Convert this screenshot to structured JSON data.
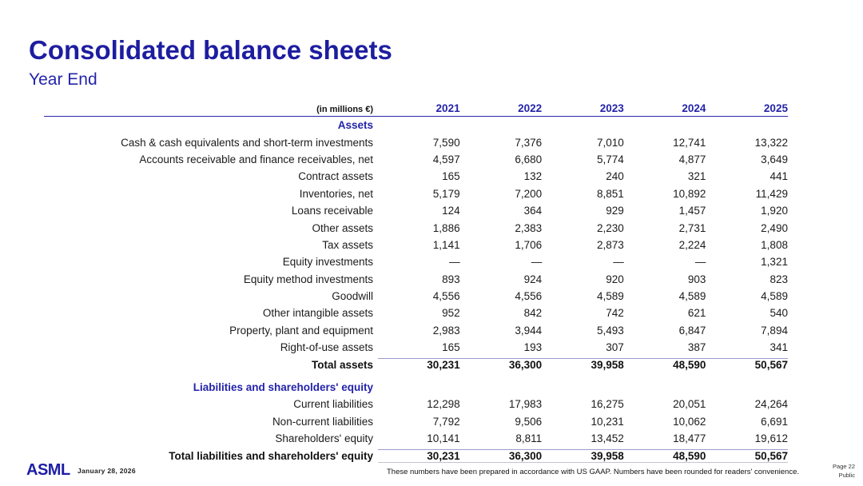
{
  "slide": {
    "title": "Consolidated balance sheets",
    "subtitle": "Year End",
    "unit_label": "(in millions €)",
    "years": [
      "2021",
      "2022",
      "2023",
      "2024",
      "2025"
    ]
  },
  "table": {
    "sections": [
      {
        "header": "Assets",
        "rows": [
          {
            "label": "Cash & cash equivalents and short-term investments",
            "values": [
              "7,590",
              "7,376",
              "7,010",
              "12,741",
              "13,322"
            ]
          },
          {
            "label": "Accounts receivable and finance receivables, net",
            "values": [
              "4,597",
              "6,680",
              "5,774",
              "4,877",
              "3,649"
            ]
          },
          {
            "label": "Contract assets",
            "values": [
              "165",
              "132",
              "240",
              "321",
              "441"
            ]
          },
          {
            "label": "Inventories, net",
            "values": [
              "5,179",
              "7,200",
              "8,851",
              "10,892",
              "11,429"
            ]
          },
          {
            "label": "Loans receivable",
            "values": [
              "124",
              "364",
              "929",
              "1,457",
              "1,920"
            ]
          },
          {
            "label": "Other assets",
            "values": [
              "1,886",
              "2,383",
              "2,230",
              "2,731",
              "2,490"
            ]
          },
          {
            "label": "Tax assets",
            "values": [
              "1,141",
              "1,706",
              "2,873",
              "2,224",
              "1,808"
            ]
          },
          {
            "label": "Equity investments",
            "values": [
              "—",
              "—",
              "—",
              "—",
              "1,321"
            ]
          },
          {
            "label": "Equity method investments",
            "values": [
              "893",
              "924",
              "920",
              "903",
              "823"
            ]
          },
          {
            "label": "Goodwill",
            "values": [
              "4,556",
              "4,556",
              "4,589",
              "4,589",
              "4,589"
            ]
          },
          {
            "label": "Other intangible assets",
            "values": [
              "952",
              "842",
              "742",
              "621",
              "540"
            ]
          },
          {
            "label": "Property, plant and equipment",
            "values": [
              "2,983",
              "3,944",
              "5,493",
              "6,847",
              "7,894"
            ]
          },
          {
            "label": "Right-of-use assets",
            "values": [
              "165",
              "193",
              "307",
              "387",
              "341"
            ]
          }
        ],
        "total": {
          "label": "Total assets",
          "values": [
            "30,231",
            "36,300",
            "39,958",
            "48,590",
            "50,567"
          ]
        }
      },
      {
        "header": "Liabilities and shareholders' equity",
        "rows": [
          {
            "label": "Current liabilities",
            "values": [
              "12,298",
              "17,983",
              "16,275",
              "20,051",
              "24,264"
            ]
          },
          {
            "label": "Non-current liabilities",
            "values": [
              "7,792",
              "9,506",
              "10,231",
              "10,062",
              "6,691"
            ]
          },
          {
            "label": "Shareholders' equity",
            "values": [
              "10,141",
              "8,811",
              "13,452",
              "18,477",
              "19,612"
            ]
          }
        ],
        "total": {
          "label": "Total liabilities and shareholders' equity",
          "values": [
            "30,231",
            "36,300",
            "39,958",
            "48,590",
            "50,567"
          ]
        }
      }
    ]
  },
  "footer": {
    "logo": "ASML",
    "date": "January 28, 2026",
    "disclaimer": "These numbers have been prepared in accordance with US GAAP.  Numbers have been rounded for readers' convenience.",
    "page": "Page 22",
    "classification": "Public"
  },
  "colors": {
    "title_blue": "#1d1da0",
    "header_blue": "#2323aa",
    "subtotal_rule": "#9b9bd0",
    "text": "#1b1b1b"
  }
}
